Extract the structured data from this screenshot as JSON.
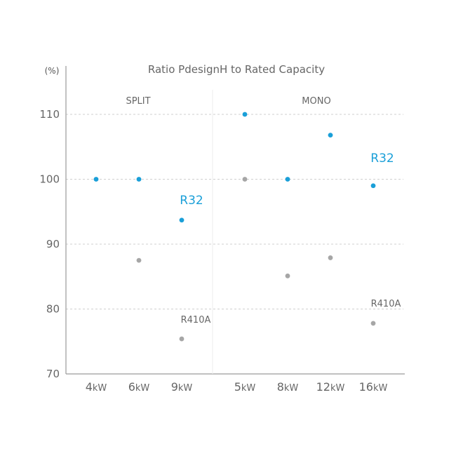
{
  "chart_data": {
    "type": "scatter",
    "title": "Ratio PdesignH to Rated Capacity",
    "y_unit": "(%)",
    "ylim": [
      70,
      112
    ],
    "yticks": [
      110,
      100,
      90,
      80,
      70
    ],
    "groups": [
      {
        "label": "SPLIT",
        "categories": [
          "4",
          "6",
          "9"
        ]
      },
      {
        "label": "MONO",
        "categories": [
          "5",
          "8",
          "12",
          "16"
        ]
      }
    ],
    "categories": [
      "4",
      "6",
      "9",
      "5",
      "8",
      "12",
      "16"
    ],
    "x_unit": "kW",
    "grid": true,
    "series": [
      {
        "name": "R32",
        "color": "#1a9fd8",
        "values": [
          100,
          100,
          93.7,
          110,
          100,
          106.8,
          99
        ],
        "labels": [
          {
            "text": "R32",
            "category_index": 2
          },
          {
            "text": "R32",
            "category_index": 6
          }
        ]
      },
      {
        "name": "R410A",
        "color": "#a6a6a6",
        "values": [
          null,
          87.5,
          75.4,
          100,
          85.1,
          87.9,
          77.8
        ],
        "labels": [
          {
            "text": "R410A",
            "category_index": 2
          },
          {
            "text": "R410A",
            "category_index": 6
          }
        ]
      }
    ]
  }
}
